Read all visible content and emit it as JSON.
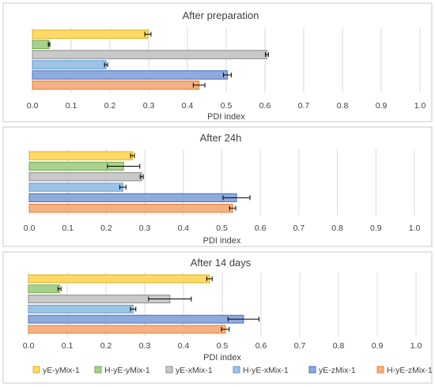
{
  "chart_data": [
    {
      "type": "bar",
      "orientation": "horizontal",
      "title": "After preparation",
      "xlabel": "PDI index",
      "xlim": [
        0,
        1.0
      ],
      "xticks": [
        "0.0",
        "0.1",
        "0.2",
        "0.3",
        "0.4",
        "0.5",
        "0.6",
        "0.7",
        "0.8",
        "0.9",
        "1.0"
      ],
      "grid": true,
      "series": [
        {
          "name": "yE-yMix-1",
          "value": 0.298,
          "error": 0.008
        },
        {
          "name": "H-yE-yMix-1",
          "value": 0.043,
          "error": 0.002
        },
        {
          "name": "yE-xMix-1",
          "value": 0.605,
          "error": 0.004
        },
        {
          "name": "H-yE-xMix-1",
          "value": 0.19,
          "error": 0.004
        },
        {
          "name": "yE-zMix-1",
          "value": 0.503,
          "error": 0.01
        },
        {
          "name": "H-yE-zMix-1",
          "value": 0.43,
          "error": 0.015
        }
      ]
    },
    {
      "type": "bar",
      "orientation": "horizontal",
      "title": "After 24h",
      "xlabel": "PDI index",
      "xlim": [
        0,
        1.0
      ],
      "xticks": [
        "0.0",
        "0.1",
        "0.2",
        "0.3",
        "0.4",
        "0.5",
        "0.6",
        "0.7",
        "0.8",
        "0.9",
        "1.0"
      ],
      "grid": true,
      "series": [
        {
          "name": "yE-yMix-1",
          "value": 0.268,
          "error": 0.005
        },
        {
          "name": "H-yE-yMix-1",
          "value": 0.245,
          "error": 0.042
        },
        {
          "name": "yE-xMix-1",
          "value": 0.292,
          "error": 0.004
        },
        {
          "name": "H-yE-xMix-1",
          "value": 0.243,
          "error": 0.008
        },
        {
          "name": "yE-zMix-1",
          "value": 0.538,
          "error": 0.035
        },
        {
          "name": "H-yE-zMix-1",
          "value": 0.528,
          "error": 0.008
        }
      ]
    },
    {
      "type": "bar",
      "orientation": "horizontal",
      "title": "After 14 days",
      "xlabel": "PDI index",
      "xlim": [
        0,
        1.0
      ],
      "xticks": [
        "0.0",
        "0.1",
        "0.2",
        "0.3",
        "0.4",
        "0.5",
        "0.6",
        "0.7",
        "0.8",
        "0.9",
        "1.0"
      ],
      "grid": true,
      "series": [
        {
          "name": "yE-yMix-1",
          "value": 0.467,
          "error": 0.007
        },
        {
          "name": "H-yE-yMix-1",
          "value": 0.08,
          "error": 0.004
        },
        {
          "name": "yE-xMix-1",
          "value": 0.365,
          "error": 0.055
        },
        {
          "name": "H-yE-xMix-1",
          "value": 0.27,
          "error": 0.007
        },
        {
          "name": "yE-zMix-1",
          "value": 0.555,
          "error": 0.04
        },
        {
          "name": "H-yE-zMix-1",
          "value": 0.508,
          "error": 0.01
        }
      ]
    }
  ],
  "legend": {
    "placement": "bottom",
    "items": [
      {
        "label": "yE-yMix-1",
        "color": "#FFD966",
        "stroke": "#E0B020"
      },
      {
        "label": "H-yE-yMix-1",
        "color": "#A9D18E",
        "stroke": "#70AD47"
      },
      {
        "label": "yE-xMix-1",
        "color": "#C9C9C9",
        "stroke": "#8C8C8C"
      },
      {
        "label": "H-yE-xMix-1",
        "color": "#9DC3E6",
        "stroke": "#5B9BD5"
      },
      {
        "label": "yE-zMix-1",
        "color": "#8FAADC",
        "stroke": "#4472C4"
      },
      {
        "label": "H-yE-zMix-1",
        "color": "#F4B183",
        "stroke": "#ED7D31"
      }
    ]
  }
}
